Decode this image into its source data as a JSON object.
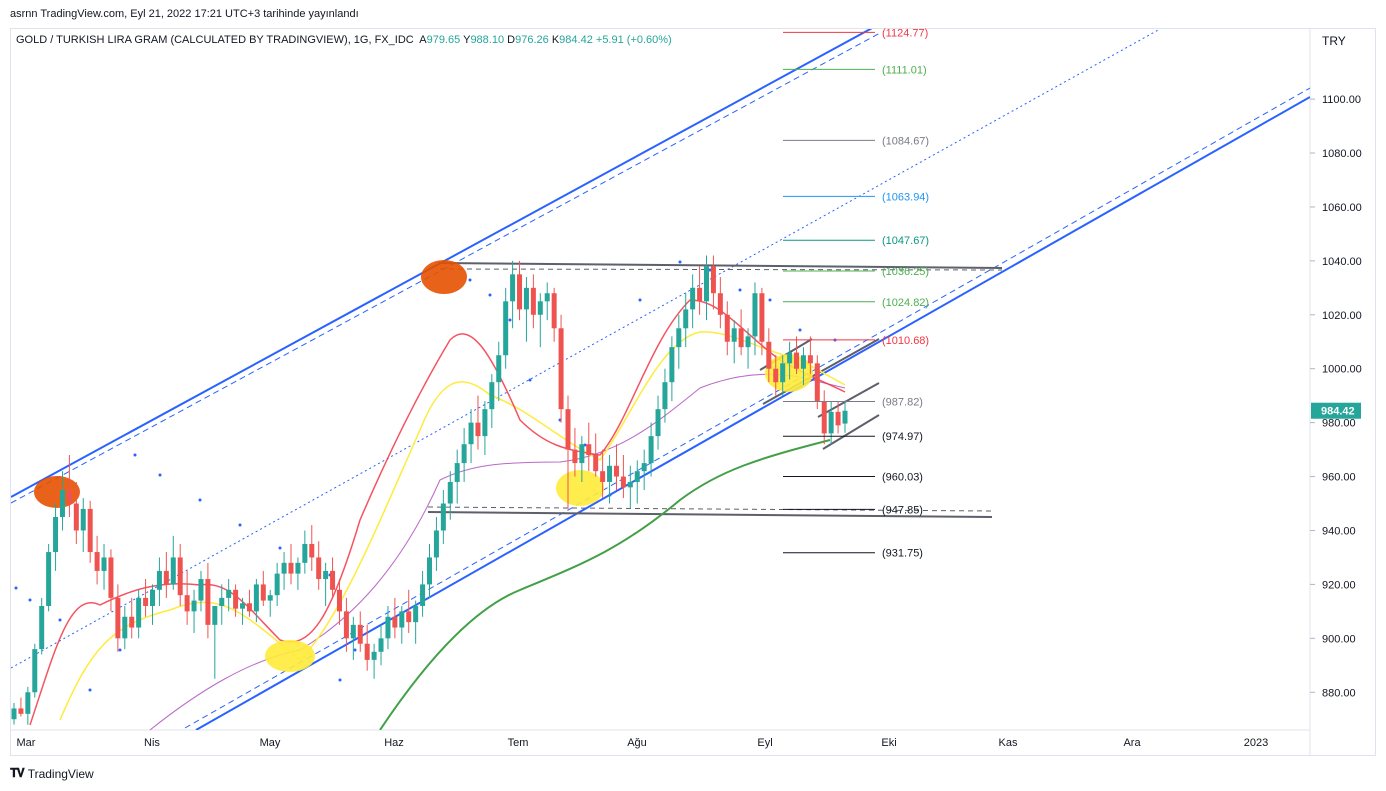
{
  "header": {
    "published": "asrnn TradingView.com, Eyl 21, 2022 17:21 UTC+3 tarihinde yayınlandı"
  },
  "symbol": {
    "name": "GOLD / TURKISH LIRA GRAM (CALCULATED BY TRADINGVIEW), 1G, FX_IDC",
    "open_label": "A",
    "open": "979.65",
    "high_label": "Y",
    "high": "988.10",
    "low_label": "D",
    "low": "976.26",
    "close_label": "K",
    "close": "984.42",
    "change": "+5.91 (+0.60%)"
  },
  "currency": "TRY",
  "footer": {
    "brand": "TradingView"
  },
  "chart_data": {
    "type": "candlestick",
    "x_ticks": [
      "Mar",
      "Nis",
      "May",
      "Haz",
      "Tem",
      "Ağu",
      "Eyl",
      "Eki",
      "Kas",
      "Ara",
      "2023"
    ],
    "y_ticks": [
      880,
      900,
      920,
      940,
      960,
      980,
      1000,
      1020,
      1040,
      1060,
      1080,
      1100
    ],
    "ylim": [
      866,
      1126
    ],
    "last_price": "984.42",
    "last_price_color": "#26a69a",
    "up_color": "#26a69a",
    "down_color": "#ef5350",
    "fib_levels": [
      {
        "value": 1124.77,
        "label": "(1124.77)",
        "color": "#f23645"
      },
      {
        "value": 1111.01,
        "label": "(1111.01)",
        "color": "#4caf50"
      },
      {
        "value": 1084.67,
        "label": "(1084.67)",
        "color": "#787b86"
      },
      {
        "value": 1063.94,
        "label": "(1063.94)",
        "color": "#2196f3"
      },
      {
        "value": 1047.67,
        "label": "(1047.67)",
        "color": "#089981"
      },
      {
        "value": 1036.25,
        "label": "(1036.25)",
        "color": "#4caf50"
      },
      {
        "value": 1024.82,
        "label": "(1024.82)",
        "color": "#4caf50"
      },
      {
        "value": 1010.68,
        "label": "(1010.68)",
        "color": "#f23645"
      },
      {
        "value": 987.82,
        "label": "(987.82)",
        "color": "#787b86"
      },
      {
        "value": 974.97,
        "label": "(974.97)",
        "color": "#131722"
      },
      {
        "value": 960.03,
        "label": "(960.03)",
        "color": "#131722"
      },
      {
        "value": 947.85,
        "label": "(947.85)",
        "color": "#131722"
      },
      {
        "value": 931.75,
        "label": "(931.75)",
        "color": "#131722"
      }
    ],
    "candles": [
      [
        870,
        876,
        868,
        874
      ],
      [
        874,
        878,
        871,
        872
      ],
      [
        872,
        882,
        868,
        880
      ],
      [
        880,
        898,
        878,
        896
      ],
      [
        896,
        915,
        894,
        912
      ],
      [
        912,
        935,
        910,
        932
      ],
      [
        932,
        950,
        925,
        945
      ],
      [
        945,
        962,
        940,
        955
      ],
      [
        955,
        968,
        945,
        950
      ],
      [
        950,
        958,
        935,
        940
      ],
      [
        940,
        952,
        932,
        948
      ],
      [
        948,
        951,
        928,
        932
      ],
      [
        932,
        938,
        920,
        925
      ],
      [
        925,
        935,
        918,
        930
      ],
      [
        930,
        933,
        910,
        915
      ],
      [
        915,
        920,
        895,
        900
      ],
      [
        900,
        912,
        896,
        908
      ],
      [
        908,
        915,
        900,
        904
      ],
      [
        904,
        918,
        900,
        915
      ],
      [
        915,
        922,
        908,
        912
      ],
      [
        912,
        920,
        905,
        918
      ],
      [
        918,
        930,
        912,
        925
      ],
      [
        925,
        932,
        915,
        920
      ],
      [
        920,
        938,
        918,
        930
      ],
      [
        930,
        935,
        912,
        916
      ],
      [
        916,
        925,
        905,
        910
      ],
      [
        910,
        918,
        902,
        914
      ],
      [
        914,
        925,
        910,
        922
      ],
      [
        922,
        928,
        900,
        905
      ],
      [
        905,
        910,
        885,
        912
      ],
      [
        912,
        920,
        905,
        915
      ],
      [
        915,
        922,
        910,
        918
      ],
      [
        918,
        920,
        908,
        911
      ],
      [
        911,
        915,
        905,
        913
      ],
      [
        913,
        918,
        908,
        910
      ],
      [
        910,
        922,
        906,
        920
      ],
      [
        920,
        925,
        912,
        914
      ],
      [
        914,
        918,
        908,
        916
      ],
      [
        916,
        928,
        912,
        924
      ],
      [
        924,
        932,
        918,
        928
      ],
      [
        928,
        935,
        920,
        924
      ],
      [
        924,
        930,
        918,
        928
      ],
      [
        928,
        940,
        924,
        935
      ],
      [
        935,
        942,
        925,
        930
      ],
      [
        930,
        936,
        918,
        922
      ],
      [
        922,
        928,
        912,
        925
      ],
      [
        925,
        930,
        915,
        918
      ],
      [
        918,
        922,
        905,
        910
      ],
      [
        910,
        915,
        895,
        900
      ],
      [
        900,
        908,
        892,
        905
      ],
      [
        905,
        910,
        895,
        898
      ],
      [
        898,
        905,
        888,
        892
      ],
      [
        892,
        898,
        885,
        895
      ],
      [
        895,
        905,
        890,
        900
      ],
      [
        900,
        912,
        896,
        908
      ],
      [
        908,
        915,
        900,
        904
      ],
      [
        904,
        912,
        898,
        910
      ],
      [
        910,
        918,
        902,
        906
      ],
      [
        906,
        914,
        898,
        912
      ],
      [
        912,
        925,
        908,
        920
      ],
      [
        920,
        935,
        915,
        930
      ],
      [
        930,
        945,
        925,
        940
      ],
      [
        940,
        955,
        935,
        950
      ],
      [
        950,
        962,
        944,
        958
      ],
      [
        958,
        970,
        950,
        965
      ],
      [
        965,
        978,
        958,
        972
      ],
      [
        972,
        985,
        965,
        980
      ],
      [
        980,
        990,
        970,
        975
      ],
      [
        975,
        988,
        968,
        985
      ],
      [
        985,
        998,
        978,
        995
      ],
      [
        995,
        1010,
        988,
        1005
      ],
      [
        1005,
        1030,
        1000,
        1025
      ],
      [
        1025,
        1040,
        1015,
        1035
      ],
      [
        1035,
        1040,
        1018,
        1022
      ],
      [
        1022,
        1034,
        1010,
        1030
      ],
      [
        1030,
        1035,
        1015,
        1020
      ],
      [
        1020,
        1028,
        1008,
        1025
      ],
      [
        1025,
        1032,
        1018,
        1028
      ],
      [
        1028,
        1030,
        1010,
        1015
      ],
      [
        1015,
        1020,
        980,
        985
      ],
      [
        985,
        990,
        948,
        970
      ],
      [
        970,
        978,
        960,
        965
      ],
      [
        965,
        975,
        958,
        972
      ],
      [
        972,
        980,
        962,
        968
      ],
      [
        968,
        976,
        960,
        962
      ],
      [
        962,
        970,
        952,
        958
      ],
      [
        958,
        968,
        950,
        964
      ],
      [
        964,
        972,
        955,
        960
      ],
      [
        960,
        968,
        952,
        956
      ],
      [
        956,
        964,
        948,
        958
      ],
      [
        958,
        966,
        950,
        962
      ],
      [
        962,
        970,
        955,
        965
      ],
      [
        965,
        980,
        960,
        975
      ],
      [
        975,
        990,
        970,
        985
      ],
      [
        985,
        1000,
        980,
        995
      ],
      [
        995,
        1012,
        988,
        1008
      ],
      [
        1008,
        1020,
        1000,
        1015
      ],
      [
        1015,
        1028,
        1008,
        1022
      ],
      [
        1022,
        1035,
        1015,
        1030
      ],
      [
        1030,
        1038,
        1020,
        1025
      ],
      [
        1025,
        1042,
        1018,
        1038
      ],
      [
        1038,
        1042,
        1022,
        1028
      ],
      [
        1028,
        1034,
        1015,
        1020
      ],
      [
        1020,
        1025,
        1005,
        1010
      ],
      [
        1010,
        1018,
        1002,
        1015
      ],
      [
        1015,
        1022,
        1005,
        1008
      ],
      [
        1008,
        1015,
        1000,
        1012
      ],
      [
        1012,
        1032,
        1005,
        1028
      ],
      [
        1028,
        1030,
        1005,
        1010
      ],
      [
        1010,
        1015,
        995,
        1000
      ],
      [
        1000,
        1005,
        990,
        995
      ],
      [
        995,
        1005,
        990,
        1002
      ],
      [
        1002,
        1010,
        996,
        1006
      ],
      [
        1006,
        1012,
        998,
        1000
      ],
      [
        1000,
        1008,
        994,
        1005
      ],
      [
        1005,
        1012,
        998,
        1002
      ],
      [
        1002,
        1005,
        985,
        988
      ],
      [
        988,
        992,
        972,
        976
      ],
      [
        976,
        988,
        972,
        984
      ],
      [
        984,
        988,
        976,
        979
      ],
      [
        979.65,
        988.1,
        976.26,
        984.42
      ]
    ]
  }
}
